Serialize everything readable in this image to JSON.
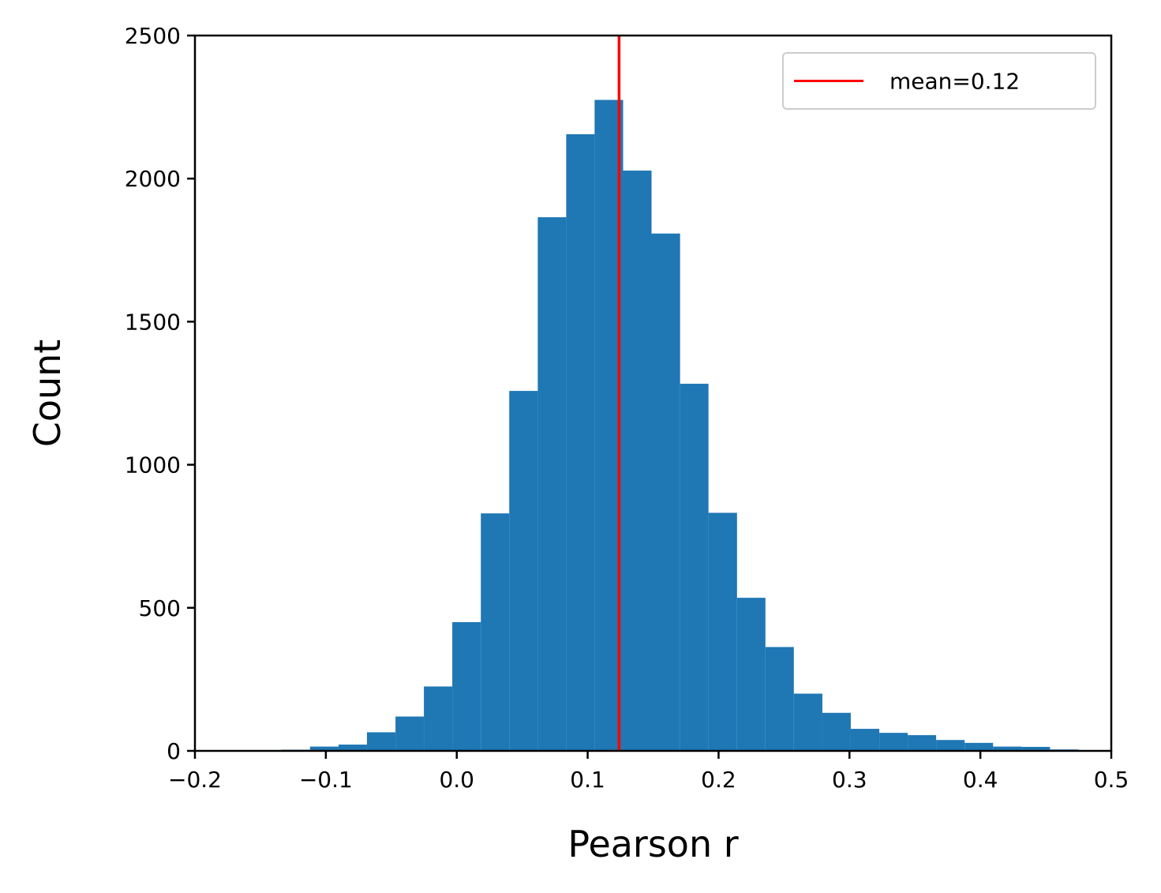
{
  "chart_data": {
    "type": "bar",
    "subtype": "histogram",
    "title": "",
    "xlabel": "Pearson r",
    "ylabel": "Count",
    "xlim": [
      -0.2,
      0.5
    ],
    "ylim": [
      0,
      2500
    ],
    "grid": false,
    "x_ticks": [
      -0.2,
      -0.1,
      0.0,
      0.1,
      0.2,
      0.3,
      0.4,
      0.5
    ],
    "x_tick_labels": [
      "−0.2",
      "−0.1",
      "0.0",
      "0.1",
      "0.2",
      "0.3",
      "0.4",
      "0.5"
    ],
    "y_ticks": [
      0,
      500,
      1000,
      1500,
      2000,
      2500
    ],
    "y_tick_labels": [
      "0",
      "500",
      "1000",
      "1500",
      "2000",
      "2500"
    ],
    "bar_color": "#1f77b4",
    "bin_edges": [
      -0.1338,
      -0.1121,
      -0.0903,
      -0.0686,
      -0.0468,
      -0.0251,
      -0.0034,
      0.0184,
      0.0401,
      0.0619,
      0.0836,
      0.1053,
      0.1271,
      0.1488,
      0.1706,
      0.1923,
      0.2141,
      0.2358,
      0.2575,
      0.2793,
      0.301,
      0.3228,
      0.3445,
      0.3662,
      0.388,
      0.4097,
      0.4315,
      0.4532,
      0.4749
    ],
    "counts": [
      4,
      15,
      22,
      65,
      120,
      225,
      450,
      830,
      1258,
      1865,
      2155,
      2275,
      2028,
      1808,
      1283,
      832,
      535,
      363,
      200,
      133,
      77,
      63,
      55,
      38,
      28,
      15,
      14,
      5
    ],
    "mean_line": {
      "x": 0.124,
      "color": "#ff0000",
      "label": "mean=0.12"
    },
    "legend": {
      "position": "top-right",
      "entries": [
        "mean=0.12"
      ]
    }
  }
}
